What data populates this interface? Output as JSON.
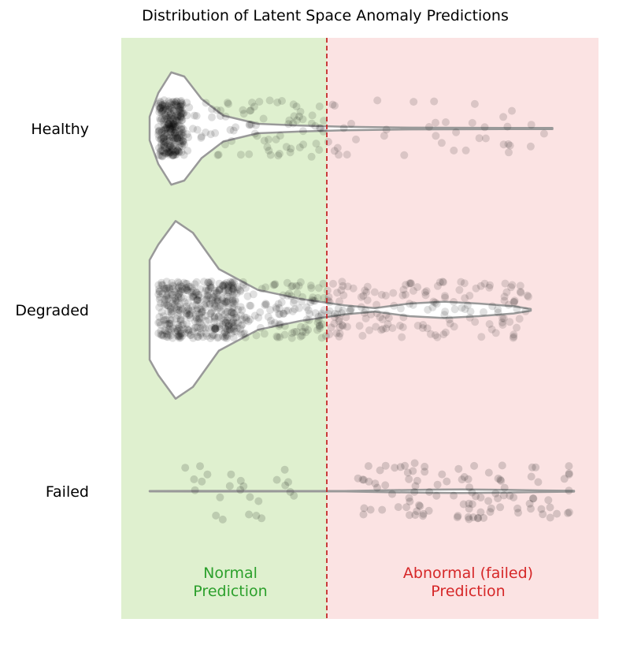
{
  "chart_data": {
    "type": "violin",
    "title": "Distribution of Latent Space Anomaly Predictions",
    "categories": [
      "Healthy",
      "Degraded",
      "Failed"
    ],
    "regions": [
      {
        "label_lines": [
          "Normal",
          "Prediction"
        ],
        "color": "#dff0cf",
        "text_color": "#2ca02c"
      },
      {
        "label_lines": [
          "Abnormal (failed)",
          "Prediction"
        ],
        "color": "#fbe3e3",
        "text_color": "#d62728"
      }
    ],
    "threshold_color": "#c62828",
    "violin_edge_color": "#999999",
    "point_color": "#000000",
    "violins": [
      {
        "category": "Healthy",
        "density": [
          [
            0.0,
            0.2
          ],
          [
            0.02,
            0.6
          ],
          [
            0.05,
            0.95
          ],
          [
            0.08,
            0.88
          ],
          [
            0.12,
            0.5
          ],
          [
            0.17,
            0.22
          ],
          [
            0.25,
            0.08
          ],
          [
            0.35,
            0.05
          ],
          [
            0.45,
            0.03
          ],
          [
            0.6,
            0.015
          ],
          [
            0.75,
            0.012
          ],
          [
            0.85,
            0.01
          ],
          [
            0.93,
            0.01
          ]
        ]
      },
      {
        "category": "Degraded",
        "density": [
          [
            0.0,
            0.55
          ],
          [
            0.02,
            0.72
          ],
          [
            0.06,
            0.98
          ],
          [
            0.1,
            0.85
          ],
          [
            0.16,
            0.45
          ],
          [
            0.25,
            0.22
          ],
          [
            0.35,
            0.12
          ],
          [
            0.45,
            0.05
          ],
          [
            0.52,
            0.02
          ],
          [
            0.6,
            0.07
          ],
          [
            0.68,
            0.09
          ],
          [
            0.76,
            0.07
          ],
          [
            0.84,
            0.04
          ],
          [
            0.88,
            0.01
          ]
        ]
      },
      {
        "category": "Failed",
        "density": [
          [
            0.0,
            0.015
          ],
          [
            0.15,
            0.02
          ],
          [
            0.35,
            0.01
          ],
          [
            0.45,
            0.012
          ],
          [
            0.55,
            0.06
          ],
          [
            0.65,
            0.1
          ],
          [
            0.72,
            0.11
          ],
          [
            0.8,
            0.095
          ],
          [
            0.9,
            0.05
          ],
          [
            0.98,
            0.025
          ]
        ]
      }
    ],
    "jitter_points": [
      {
        "category": "Healthy",
        "count": 380,
        "opacity": 0.13,
        "distribution": [
          [
            0.02,
            0.08,
            0.7
          ],
          [
            0.08,
            0.45,
            0.22
          ],
          [
            0.45,
            0.93,
            0.08
          ]
        ]
      },
      {
        "category": "Degraded",
        "count": 700,
        "opacity": 0.12,
        "distribution": [
          [
            0.02,
            0.2,
            0.6
          ],
          [
            0.2,
            0.45,
            0.2
          ],
          [
            0.45,
            0.88,
            0.2
          ]
        ]
      },
      {
        "category": "Failed",
        "count": 130,
        "opacity": 0.15,
        "distribution": [
          [
            0.07,
            0.34,
            0.17
          ],
          [
            0.48,
            0.97,
            0.83
          ]
        ]
      }
    ],
    "xlabel": "",
    "ylabel": "",
    "grid": false,
    "legend": "none"
  }
}
